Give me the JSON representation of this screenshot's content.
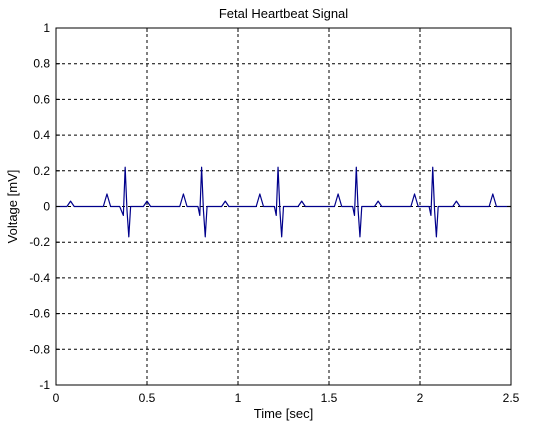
{
  "chart_data": {
    "type": "line",
    "title": "Fetal Heartbeat Signal",
    "xlabel": "Time [sec]",
    "ylabel": "Voltage [mV]",
    "xlim": [
      0,
      2.5
    ],
    "ylim": [
      -1,
      1
    ],
    "x_ticks": [
      0,
      0.5,
      1,
      1.5,
      2,
      2.5
    ],
    "x_tick_labels": [
      "0",
      "0.5",
      "1",
      "1.5",
      "2",
      "2.5"
    ],
    "y_ticks": [
      -1,
      -0.8,
      -0.6,
      -0.4,
      -0.2,
      0,
      0.2,
      0.4,
      0.6,
      0.8,
      1
    ],
    "y_tick_labels": [
      "-1",
      "-0.8",
      "-0.6",
      "-0.4",
      "-0.2",
      "0",
      "0.2",
      "0.4",
      "0.6",
      "0.8",
      "1"
    ],
    "grid": true,
    "series": [
      {
        "color": "#00008b",
        "x": [
          0,
          0.06,
          0.08,
          0.1,
          0.12,
          0.26,
          0.28,
          0.3,
          0.35,
          0.37,
          0.38,
          0.39,
          0.4,
          0.41,
          0.42,
          0.45,
          0.48,
          0.5,
          0.52,
          0.6,
          0.68,
          0.7,
          0.72,
          0.78,
          0.79,
          0.8,
          0.81,
          0.82,
          0.83,
          0.84,
          0.87,
          0.91,
          0.93,
          0.95,
          1.0,
          1.1,
          1.12,
          1.14,
          1.2,
          1.21,
          1.22,
          1.23,
          1.24,
          1.25,
          1.26,
          1.3,
          1.33,
          1.35,
          1.37,
          1.45,
          1.53,
          1.55,
          1.57,
          1.63,
          1.64,
          1.65,
          1.66,
          1.67,
          1.68,
          1.69,
          1.72,
          1.75,
          1.77,
          1.79,
          1.87,
          1.95,
          1.97,
          1.99,
          2.05,
          2.06,
          2.07,
          2.08,
          2.09,
          2.1,
          2.11,
          2.14,
          2.18,
          2.2,
          2.22,
          2.3,
          2.38,
          2.4,
          2.42,
          2.5
        ],
        "y": [
          0,
          0,
          0.03,
          0,
          0,
          0,
          0.07,
          0,
          0,
          -0.05,
          0.22,
          -0.02,
          -0.17,
          0,
          0,
          0,
          0,
          0.03,
          0,
          0,
          0,
          0.07,
          0,
          0,
          -0.05,
          0.22,
          -0.02,
          -0.17,
          0,
          0,
          0,
          0,
          0.03,
          0,
          0,
          0,
          0.07,
          0,
          0,
          -0.05,
          0.22,
          -0.02,
          -0.17,
          0,
          0,
          0,
          0,
          0.03,
          0,
          0,
          0,
          0.07,
          0,
          0,
          -0.05,
          0.22,
          -0.02,
          -0.17,
          0,
          0,
          0,
          0,
          0.03,
          0,
          0,
          0,
          0.07,
          0,
          0,
          -0.05,
          0.22,
          -0.02,
          -0.17,
          0,
          0,
          0,
          0,
          0.03,
          0,
          0,
          0,
          0.07,
          0,
          0
        ]
      }
    ]
  }
}
